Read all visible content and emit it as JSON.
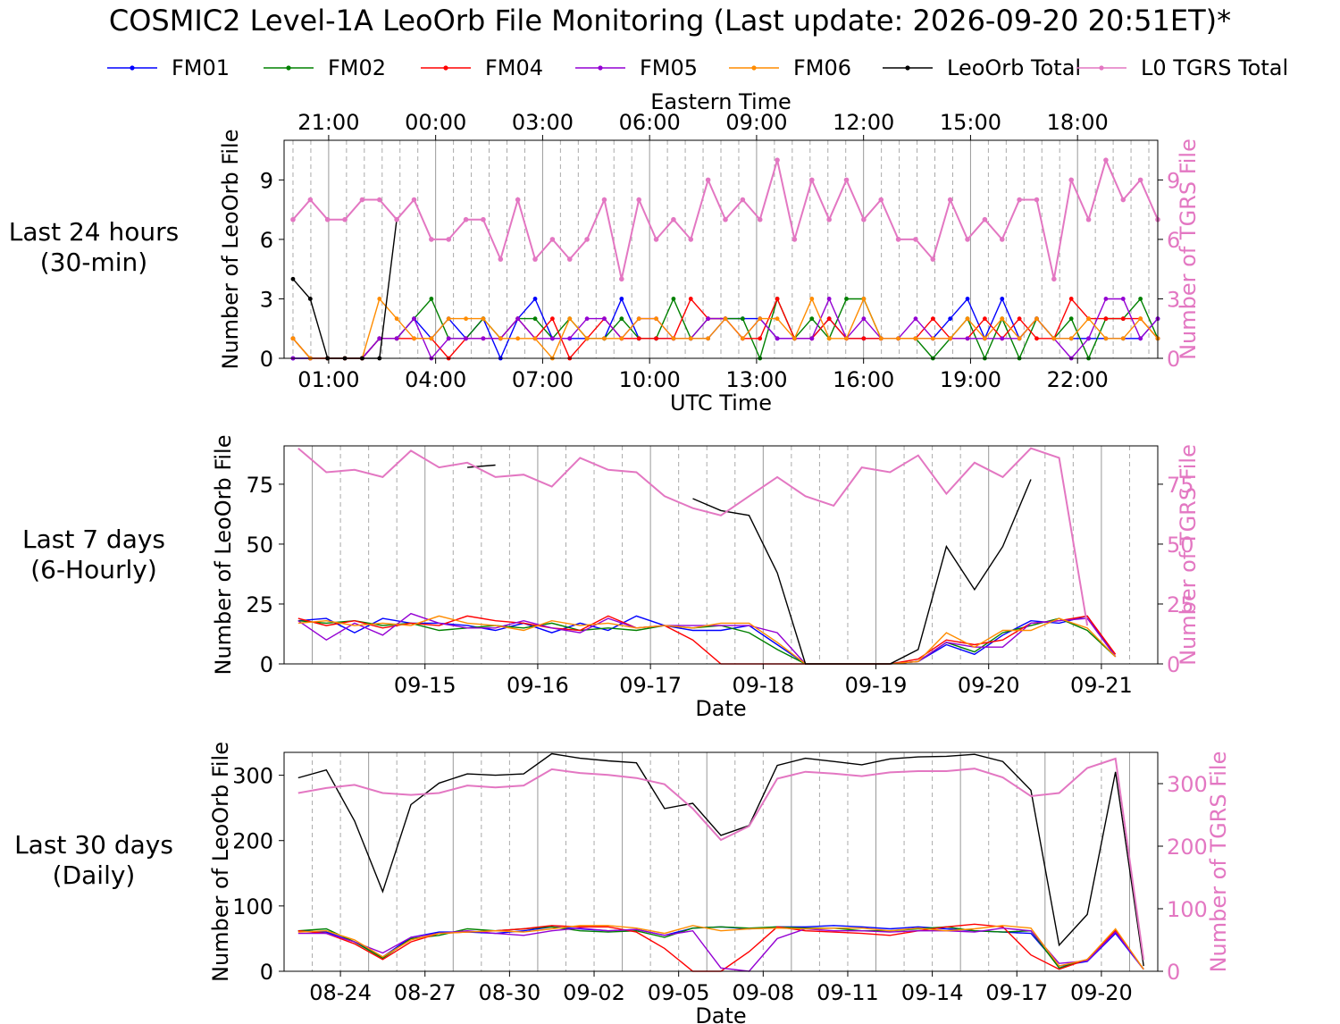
{
  "title": "COSMIC2 Level-1A LeoOrb File Monitoring (Last update: 2026-09-20 20:51ET)*",
  "legend": [
    {
      "name": "FM01",
      "color": "#0000ff"
    },
    {
      "name": "FM02",
      "color": "#008000"
    },
    {
      "name": "FM04",
      "color": "#ff0000"
    },
    {
      "name": "FM05",
      "color": "#9400d3"
    },
    {
      "name": "FM06",
      "color": "#ff8c00"
    },
    {
      "name": "LeoOrb Total",
      "color": "#000000"
    },
    {
      "name": "L0 TGRS Total",
      "color": "#e377c2"
    }
  ],
  "rows": [
    {
      "label_line1": "Last 24 hours",
      "label_line2": "(30-min)"
    },
    {
      "label_line1": "Last 7 days",
      "label_line2": "(6-Hourly)"
    },
    {
      "label_line1": "Last 30 days",
      "label_line2": "(Daily)"
    }
  ],
  "chart_data": [
    {
      "type": "line",
      "ylabel": "Number of LeoOrb File",
      "y2label": "Number of TGRS File",
      "xlabel": "UTC Time",
      "top_xlabel": "Eastern Time",
      "ylim": [
        0,
        11
      ],
      "y2lim": [
        0,
        11
      ],
      "xlim": [
        -0.5,
        48.5
      ],
      "yticks": [
        0,
        3,
        6,
        9
      ],
      "xticks": [
        {
          "pos": 2,
          "label": "01:00"
        },
        {
          "pos": 8,
          "label": "04:00"
        },
        {
          "pos": 14,
          "label": "07:00"
        },
        {
          "pos": 20,
          "label": "10:00"
        },
        {
          "pos": 26,
          "label": "13:00"
        },
        {
          "pos": 32,
          "label": "16:00"
        },
        {
          "pos": 38,
          "label": "19:00"
        },
        {
          "pos": 44,
          "label": "22:00"
        }
      ],
      "top_xticks": [
        {
          "pos": 2,
          "label": "21:00"
        },
        {
          "pos": 8,
          "label": "00:00"
        },
        {
          "pos": 14,
          "label": "03:00"
        },
        {
          "pos": 20,
          "label": "06:00"
        },
        {
          "pos": 26,
          "label": "09:00"
        },
        {
          "pos": 32,
          "label": "12:00"
        },
        {
          "pos": 38,
          "label": "15:00"
        },
        {
          "pos": 44,
          "label": "18:00"
        }
      ],
      "x_start": 0,
      "markers": true,
      "series": [
        {
          "name": "FM01",
          "color": "#0000ff",
          "values": [
            0,
            0,
            0,
            0,
            0,
            1,
            1,
            2,
            1,
            2,
            1,
            2,
            0,
            2,
            3,
            1,
            1,
            1,
            1,
            3,
            1,
            1,
            1,
            1,
            1,
            2,
            2,
            2,
            1,
            1,
            1,
            2,
            1,
            1,
            1,
            1,
            1,
            1,
            2,
            3,
            1,
            3,
            1,
            2,
            1,
            1,
            1,
            1,
            1,
            1,
            2
          ]
        },
        {
          "name": "FM02",
          "color": "#008000",
          "values": [
            1,
            0,
            0,
            0,
            0,
            1,
            1,
            2,
            3,
            1,
            1,
            2,
            1,
            2,
            2,
            1,
            2,
            1,
            1,
            2,
            1,
            1,
            3,
            1,
            2,
            2,
            2,
            0,
            3,
            1,
            2,
            1,
            3,
            3,
            1,
            1,
            1,
            0,
            1,
            2,
            0,
            2,
            0,
            2,
            1,
            2,
            0,
            2,
            2,
            3,
            1
          ]
        },
        {
          "name": "FM04",
          "color": "#ff0000",
          "values": [
            1,
            0,
            0,
            0,
            0,
            1,
            1,
            1,
            1,
            0,
            1,
            1,
            1,
            2,
            1,
            2,
            0,
            1,
            2,
            1,
            1,
            1,
            1,
            3,
            2,
            2,
            1,
            1,
            3,
            1,
            1,
            2,
            1,
            1,
            1,
            1,
            1,
            2,
            1,
            1,
            2,
            1,
            2,
            1,
            1,
            3,
            2,
            2,
            2,
            2,
            1
          ]
        },
        {
          "name": "FM05",
          "color": "#9400d3",
          "values": [
            0,
            0,
            0,
            0,
            0,
            1,
            1,
            2,
            0,
            1,
            1,
            1,
            1,
            2,
            1,
            1,
            1,
            2,
            2,
            1,
            2,
            2,
            1,
            1,
            2,
            2,
            1,
            2,
            1,
            1,
            1,
            3,
            1,
            2,
            1,
            1,
            2,
            1,
            1,
            1,
            1,
            1,
            1,
            2,
            1,
            0,
            1,
            3,
            3,
            1,
            2
          ]
        },
        {
          "name": "FM06",
          "color": "#ff8c00",
          "values": [
            1,
            0,
            0,
            0,
            0,
            3,
            2,
            1,
            1,
            2,
            2,
            2,
            1,
            1,
            1,
            0,
            2,
            1,
            1,
            1,
            2,
            2,
            1,
            1,
            1,
            2,
            1,
            2,
            2,
            1,
            3,
            1,
            1,
            3,
            1,
            1,
            1,
            1,
            1,
            2,
            1,
            2,
            1,
            2,
            1,
            1,
            2,
            1,
            1,
            2,
            1
          ]
        },
        {
          "name": "LeoOrb Total",
          "color": "#000000",
          "values": [
            4,
            3,
            0,
            0,
            0,
            0,
            7
          ]
        },
        {
          "name": "L0 TGRS Total",
          "color": "#e377c2",
          "values": [
            7,
            8,
            7,
            7,
            8,
            8,
            7,
            8,
            6,
            6,
            7,
            7,
            5,
            8,
            5,
            6,
            5,
            6,
            8,
            4,
            8,
            6,
            7,
            6,
            9,
            7,
            8,
            7,
            10,
            6,
            9,
            7,
            9,
            7,
            8,
            6,
            6,
            5,
            8,
            6,
            7,
            6,
            8,
            8,
            4,
            9,
            7,
            10,
            8,
            9,
            7
          ]
        }
      ]
    },
    {
      "type": "line",
      "ylabel": "Number of LeoOrb File",
      "y2label": "Number of TGRS File",
      "xlabel": "Date",
      "ylim": [
        0,
        91
      ],
      "y2lim": [
        0,
        91
      ],
      "xlim": [
        0,
        31
      ],
      "yticks": [
        0,
        25,
        50,
        75
      ],
      "xticks": [
        {
          "pos": 5,
          "label": "09-15"
        },
        {
          "pos": 9,
          "label": "09-16"
        },
        {
          "pos": 13,
          "label": "09-17"
        },
        {
          "pos": 17,
          "label": "09-18"
        },
        {
          "pos": 21,
          "label": "09-19"
        },
        {
          "pos": 25,
          "label": "09-20"
        },
        {
          "pos": 29,
          "label": "09-21"
        }
      ],
      "x_start": 0,
      "markers": false,
      "series": [
        {
          "name": "FM01",
          "color": "#0000ff",
          "values": [
            18,
            19,
            13,
            19,
            17,
            17,
            16,
            14,
            17,
            13,
            17,
            14,
            20,
            16,
            14,
            14,
            16,
            8,
            0,
            0,
            0,
            0,
            1,
            8,
            4,
            12,
            18,
            17,
            20,
            3
          ]
        },
        {
          "name": "FM02",
          "color": "#008000",
          "values": [
            18,
            17,
            18,
            16,
            17,
            14,
            15,
            16,
            15,
            17,
            14,
            15,
            14,
            16,
            15,
            16,
            13,
            6,
            0,
            0,
            0,
            0,
            1,
            9,
            5,
            13,
            16,
            19,
            14,
            3
          ]
        },
        {
          "name": "FM04",
          "color": "#ff0000",
          "values": [
            19,
            16,
            18,
            15,
            17,
            16,
            20,
            18,
            17,
            15,
            14,
            20,
            15,
            16,
            10,
            0,
            0,
            0,
            0,
            0,
            0,
            0,
            2,
            10,
            8,
            10,
            17,
            18,
            20,
            4
          ]
        },
        {
          "name": "FM05",
          "color": "#9400d3",
          "values": [
            18,
            10,
            17,
            12,
            21,
            17,
            15,
            15,
            18,
            15,
            13,
            19,
            15,
            16,
            16,
            16,
            16,
            13,
            0,
            0,
            0,
            0,
            1,
            9,
            7,
            7,
            17,
            18,
            19,
            3
          ]
        },
        {
          "name": "FM06",
          "color": "#ff8c00",
          "values": [
            17,
            18,
            16,
            17,
            16,
            20,
            17,
            16,
            14,
            18,
            16,
            17,
            15,
            16,
            15,
            17,
            17,
            9,
            0,
            0,
            0,
            0,
            1,
            13,
            7,
            14,
            14,
            19,
            15,
            3
          ]
        },
        {
          "name": "LeoOrb Total",
          "color": "#000000",
          "values": [
            null,
            null,
            null,
            null,
            null,
            null,
            82,
            83,
            null,
            null,
            null,
            null,
            null,
            null,
            69,
            64,
            62,
            38,
            0,
            0,
            0,
            0,
            6,
            49,
            31,
            49,
            77,
            null,
            null,
            null
          ]
        },
        {
          "name": "L0 TGRS Total",
          "color": "#e377c2",
          "values": [
            90,
            80,
            81,
            78,
            89,
            82,
            84,
            78,
            79,
            74,
            86,
            81,
            80,
            70,
            65,
            62,
            70,
            78,
            70,
            66,
            82,
            80,
            87,
            71,
            84,
            78,
            90,
            86,
            16
          ]
        }
      ]
    },
    {
      "type": "line",
      "ylabel": "Number of LeoOrb File",
      "y2label": "Number of TGRS File",
      "xlabel": "Date",
      "ylim": [
        0,
        335
      ],
      "y2lim": [
        0,
        350
      ],
      "xlim": [
        0,
        31
      ],
      "yticks": [
        0,
        100,
        200,
        300
      ],
      "y2ticks": [
        0,
        100,
        200,
        300
      ],
      "xticks": [
        {
          "pos": 2,
          "label": "08-24"
        },
        {
          "pos": 5,
          "label": "08-27"
        },
        {
          "pos": 8,
          "label": "08-30"
        },
        {
          "pos": 11,
          "label": "09-02"
        },
        {
          "pos": 14,
          "label": "09-05"
        },
        {
          "pos": 17,
          "label": "09-08"
        },
        {
          "pos": 20,
          "label": "09-11"
        },
        {
          "pos": 23,
          "label": "09-14"
        },
        {
          "pos": 26,
          "label": "09-17"
        },
        {
          "pos": 29,
          "label": "09-20"
        }
      ],
      "x_start": 0,
      "markers": false,
      "series": [
        {
          "name": "FM01",
          "color": "#0000ff",
          "values": [
            62,
            60,
            45,
            22,
            52,
            60,
            60,
            58,
            62,
            68,
            65,
            62,
            64,
            55,
            66,
            68,
            65,
            68,
            68,
            70,
            68,
            65,
            68,
            65,
            62,
            60,
            58,
            8,
            15,
            58,
            3
          ]
        },
        {
          "name": "FM02",
          "color": "#008000",
          "values": [
            62,
            65,
            45,
            20,
            50,
            55,
            65,
            62,
            65,
            68,
            62,
            60,
            62,
            52,
            66,
            68,
            66,
            68,
            66,
            66,
            62,
            62,
            65,
            68,
            62,
            60,
            62,
            5,
            18,
            62,
            3
          ]
        },
        {
          "name": "FM04",
          "color": "#ff0000",
          "values": [
            62,
            58,
            42,
            18,
            45,
            58,
            60,
            62,
            65,
            70,
            68,
            68,
            60,
            35,
            0,
            0,
            30,
            68,
            62,
            60,
            58,
            55,
            62,
            68,
            72,
            68,
            25,
            3,
            18,
            62,
            3
          ]
        },
        {
          "name": "FM05",
          "color": "#9400d3",
          "values": [
            58,
            58,
            45,
            28,
            52,
            58,
            62,
            58,
            55,
            62,
            66,
            62,
            64,
            55,
            62,
            5,
            0,
            50,
            65,
            62,
            62,
            60,
            62,
            62,
            60,
            66,
            62,
            12,
            16,
            60,
            3
          ]
        },
        {
          "name": "FM06",
          "color": "#ff8c00",
          "values": [
            60,
            62,
            48,
            22,
            48,
            58,
            60,
            62,
            60,
            65,
            70,
            70,
            66,
            58,
            70,
            62,
            65,
            66,
            65,
            66,
            66,
            62,
            66,
            62,
            65,
            70,
            66,
            8,
            18,
            65,
            3
          ]
        },
        {
          "name": "LeoOrb Total",
          "color": "#000000",
          "values": [
            296,
            308,
            230,
            122,
            255,
            288,
            302,
            300,
            302,
            333,
            326,
            322,
            319,
            249,
            257,
            208,
            223,
            315,
            326,
            321,
            316,
            325,
            328,
            329,
            332,
            321,
            277,
            40,
            87,
            305,
            8
          ]
        },
        {
          "name": "L0 TGRS Total",
          "color": "#e377c2",
          "values": [
            285,
            293,
            298,
            285,
            282,
            285,
            297,
            294,
            297,
            323,
            317,
            314,
            309,
            299,
            260,
            210,
            232,
            308,
            319,
            316,
            312,
            318,
            320,
            320,
            324,
            310,
            280,
            285,
            325,
            340,
            18
          ]
        }
      ]
    }
  ]
}
